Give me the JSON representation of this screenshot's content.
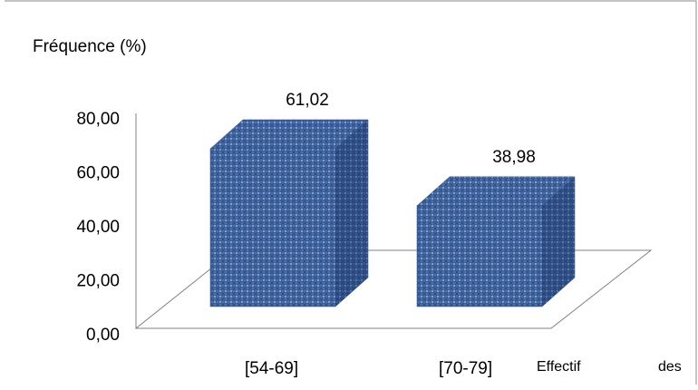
{
  "chart_data": {
    "type": "bar",
    "style": "3d-textured-cube",
    "bar_color": "#4a6ea8",
    "ylabel": "Fréquence (%)",
    "xlabel": "Effectif des",
    "categories": [
      "[54-69]",
      "[70-79]"
    ],
    "values": [
      61.02,
      38.98
    ],
    "value_labels": [
      "61,02",
      "38,98"
    ],
    "yticks": [
      "0,00",
      "20,00",
      "40,00",
      "60,00",
      "80,00"
    ],
    "ylim": [
      0,
      80
    ],
    "grid": false,
    "legend": "none"
  }
}
